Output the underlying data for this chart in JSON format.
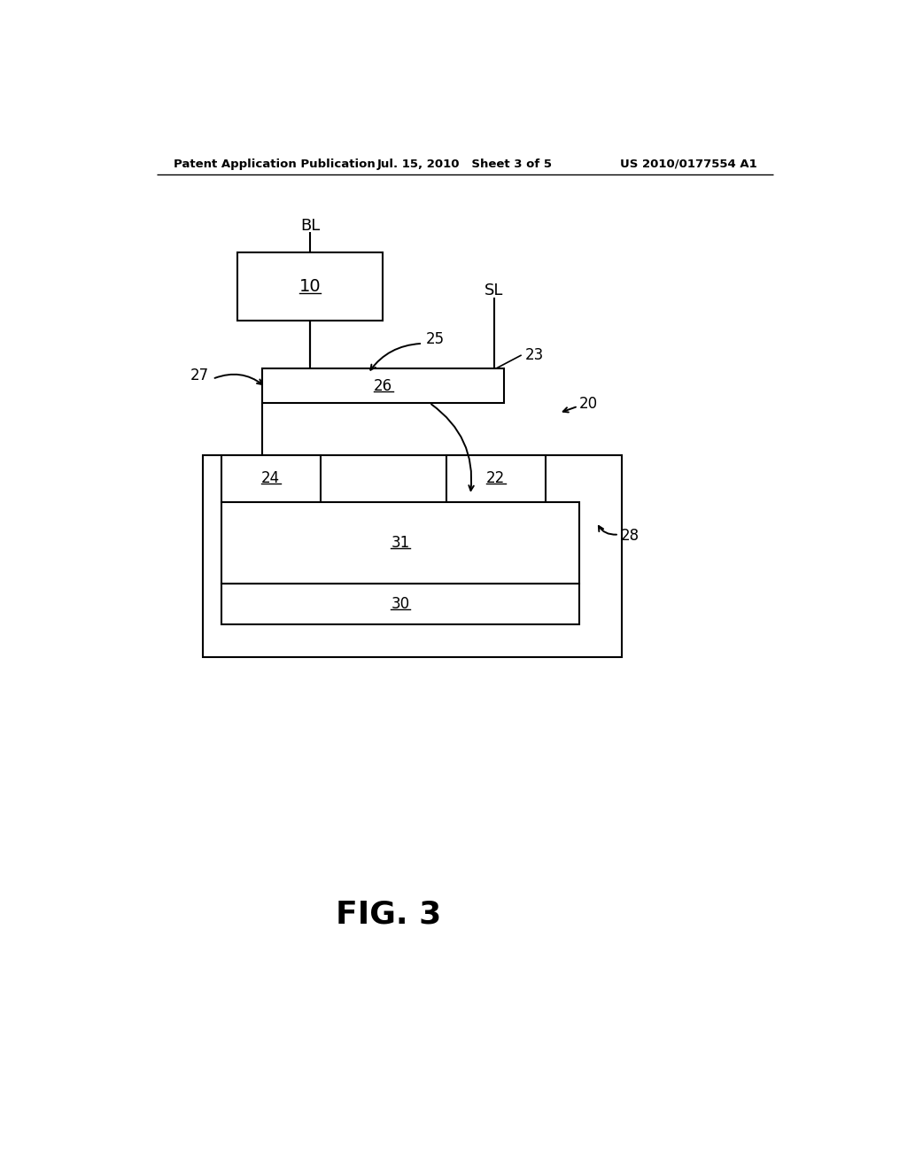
{
  "background_color": "#ffffff",
  "header_left": "Patent Application Publication",
  "header_center": "Jul. 15, 2010   Sheet 3 of 5",
  "header_right": "US 2010/0177554 A1",
  "figure_label": "FIG. 3",
  "header_fontsize": 9.5,
  "figure_label_fontsize": 26,
  "line_color": "#000000",
  "line_width": 1.5
}
